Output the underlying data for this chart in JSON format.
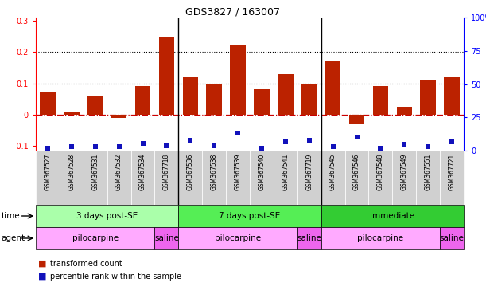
{
  "title": "GDS3827 / 163007",
  "samples": [
    "GSM367527",
    "GSM367528",
    "GSM367531",
    "GSM367532",
    "GSM367534",
    "GSM367718",
    "GSM367536",
    "GSM367538",
    "GSM367539",
    "GSM367540",
    "GSM367541",
    "GSM367719",
    "GSM367545",
    "GSM367546",
    "GSM367548",
    "GSM367549",
    "GSM367551",
    "GSM367721"
  ],
  "transformed_count": [
    0.07,
    0.01,
    0.06,
    -0.01,
    0.09,
    0.25,
    0.12,
    0.1,
    0.22,
    0.08,
    0.13,
    0.1,
    0.17,
    -0.03,
    0.09,
    0.025,
    0.11,
    0.12
  ],
  "percentile_rank_left": [
    -0.108,
    -0.103,
    -0.103,
    -0.102,
    -0.092,
    -0.099,
    -0.082,
    -0.101,
    -0.06,
    -0.108,
    -0.087,
    -0.081,
    -0.102,
    -0.072,
    -0.107,
    -0.094,
    -0.103,
    -0.088
  ],
  "ylim": [
    -0.115,
    0.31
  ],
  "y2lim": [
    0,
    100
  ],
  "yticks_left": [
    -0.1,
    0.0,
    0.1,
    0.2,
    0.3
  ],
  "ytick_labels_left": [
    "-0.1",
    "0",
    "0.1",
    "0.2",
    "0.3"
  ],
  "y2ticks": [
    0,
    25,
    50,
    75,
    100
  ],
  "bar_color": "#bb2200",
  "dot_color": "#1111bb",
  "hline_color": "#cc0000",
  "dotted_line_y": [
    0.1,
    0.2
  ],
  "group_dividers": [
    5.5,
    11.5
  ],
  "time_groups": [
    {
      "label": "3 days post-SE",
      "start": 0,
      "end": 5,
      "color": "#aaffaa"
    },
    {
      "label": "7 days post-SE",
      "start": 6,
      "end": 11,
      "color": "#55ee55"
    },
    {
      "label": "immediate",
      "start": 12,
      "end": 17,
      "color": "#33cc33"
    }
  ],
  "agent_groups": [
    {
      "label": "pilocarpine",
      "start": 0,
      "end": 4,
      "color": "#ffaaff"
    },
    {
      "label": "saline",
      "start": 5,
      "end": 5,
      "color": "#ee66ee"
    },
    {
      "label": "pilocarpine",
      "start": 6,
      "end": 10,
      "color": "#ffaaff"
    },
    {
      "label": "saline",
      "start": 11,
      "end": 11,
      "color": "#ee66ee"
    },
    {
      "label": "pilocarpine",
      "start": 12,
      "end": 16,
      "color": "#ffaaff"
    },
    {
      "label": "saline",
      "start": 17,
      "end": 17,
      "color": "#ee66ee"
    }
  ],
  "legend_bar_label": "transformed count",
  "legend_dot_label": "percentile rank within the sample",
  "time_label": "time",
  "agent_label": "agent",
  "bg_color": "#ffffff",
  "grid_color": "#cccccc",
  "cell_bg": "#d0d0d0"
}
